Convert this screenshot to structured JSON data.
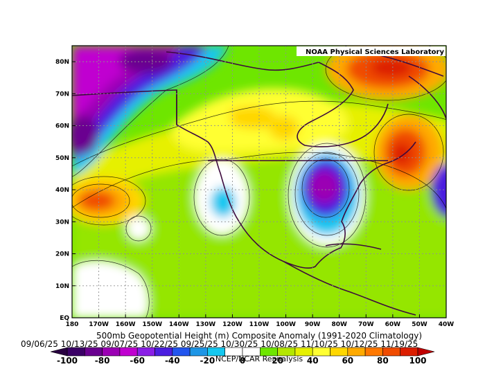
{
  "lab_label": "NOAA Physical Sciences Laboratory",
  "title": "500mb Geopotential Height (m) Composite Anomaly (1991-2020 Climatology)",
  "dates_line": "09/06/25 10/13/25 09/07/25 10/22/25 09/25/25 10/30/25 10/08/25 11/10/25 10/12/25 11/19/25",
  "credit": "NCEP/NCAR Reanalysis",
  "map": {
    "lon_ticks": [
      "180",
      "170W",
      "160W",
      "150W",
      "140W",
      "130W",
      "120W",
      "110W",
      "100W",
      "90W",
      "80W",
      "70W",
      "60W",
      "50W",
      "40W"
    ],
    "lat_ticks": [
      "EQ",
      "10N",
      "20N",
      "30N",
      "40N",
      "50N",
      "60N",
      "70N",
      "80N"
    ],
    "lon_range": [
      -180,
      -40
    ],
    "lat_range": [
      0,
      85
    ]
  },
  "colorbar": {
    "labels": [
      "-100",
      "-80",
      "-60",
      "-40",
      "-20",
      "0",
      "20",
      "40",
      "60",
      "80",
      "100"
    ],
    "colors": [
      "#3b0066",
      "#6a0090",
      "#9b00b4",
      "#c000d0",
      "#8a1ee6",
      "#4b1ee0",
      "#2255ee",
      "#1e96e6",
      "#15c8f0",
      "#ffffff",
      "#ffffff",
      "#6ee600",
      "#b4e600",
      "#e6f000",
      "#ffff32",
      "#ffd700",
      "#ffaa00",
      "#ff7800",
      "#f04b00",
      "#dc1e00"
    ]
  }
}
